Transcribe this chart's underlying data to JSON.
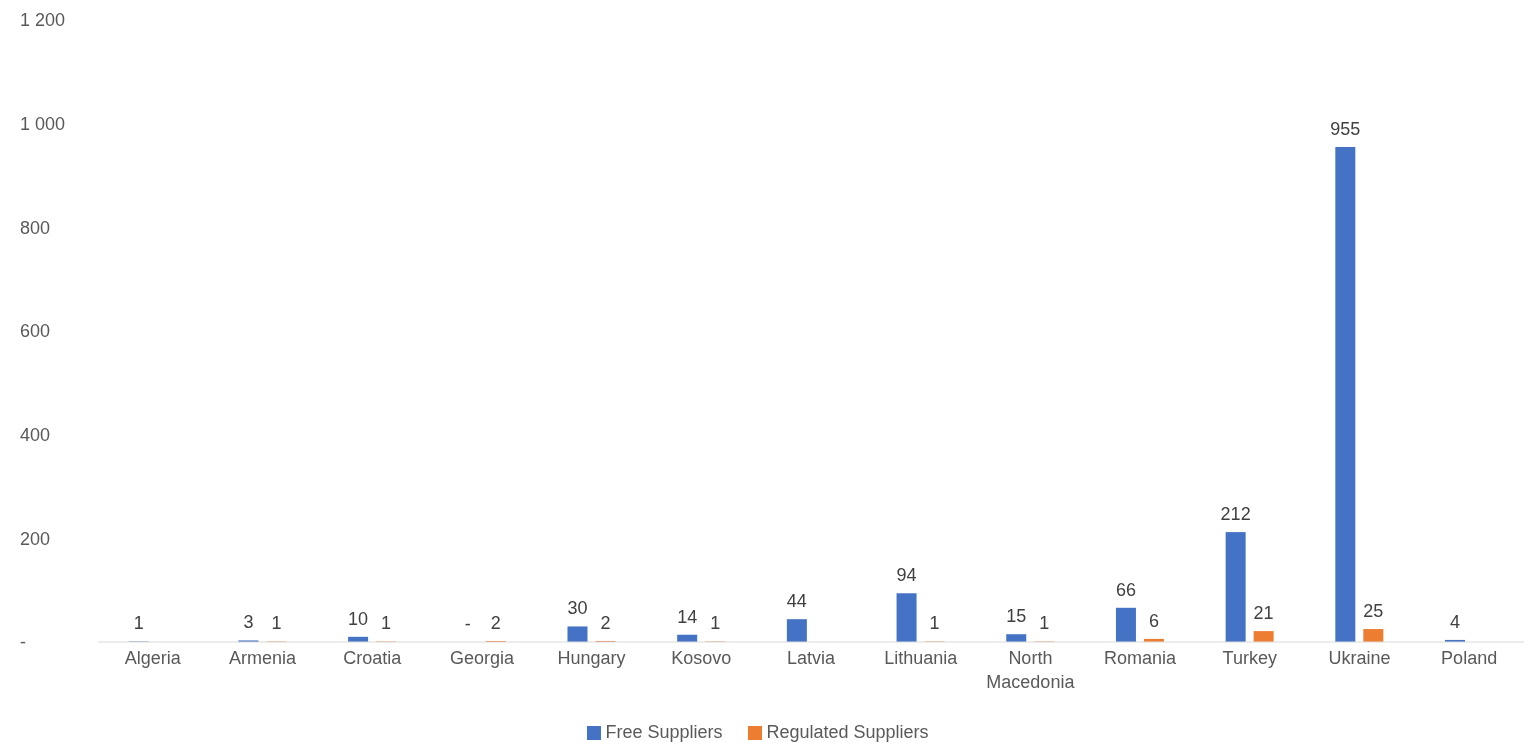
{
  "chart_data": {
    "type": "bar",
    "categories": [
      "Algeria",
      "Armenia",
      "Croatia",
      "Georgia",
      "Hungary",
      "Kosovo",
      "Latvia",
      "Lithuania",
      "North Macedonia",
      "Romania",
      "Turkey",
      "Ukraine",
      "Poland"
    ],
    "series": [
      {
        "name": "Free Suppliers",
        "color": "#4472c4",
        "values": [
          1,
          3,
          10,
          0,
          30,
          14,
          44,
          94,
          15,
          66,
          212,
          955,
          4
        ],
        "value_labels": [
          "1",
          "3",
          "10",
          "-",
          "30",
          "14",
          "44",
          "94",
          "15",
          "66",
          "212",
          "955",
          "4"
        ]
      },
      {
        "name": "Regulated Suppliers",
        "color": "#ed7d31",
        "values": [
          null,
          1,
          1,
          2,
          2,
          1,
          null,
          1,
          1,
          6,
          21,
          25,
          null
        ],
        "value_labels": [
          null,
          "1",
          "1",
          "2",
          "2",
          "1",
          null,
          "1",
          "1",
          "6",
          "21",
          "25",
          null
        ]
      }
    ],
    "ylim": [
      0,
      1200
    ],
    "yticks": [
      {
        "value": 0,
        "label": "-"
      },
      {
        "value": 200,
        "label": "200"
      },
      {
        "value": 400,
        "label": "400"
      },
      {
        "value": 600,
        "label": "600"
      },
      {
        "value": 800,
        "label": "800"
      },
      {
        "value": 1000,
        "label": "1 000"
      },
      {
        "value": 1200,
        "label": "1 200"
      }
    ],
    "grid": false,
    "legend": "bottom"
  }
}
